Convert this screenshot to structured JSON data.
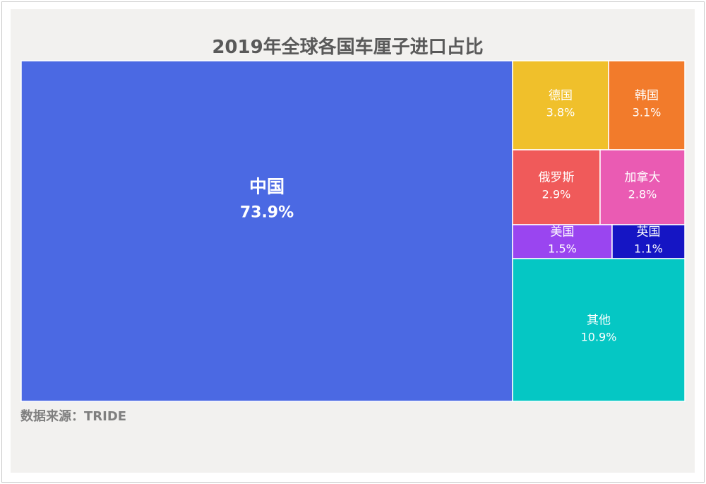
{
  "chart_data": {
    "type": "treemap",
    "title": "2019年全球各国车厘子进口占比",
    "source": "数据来源：TRIDE",
    "items": [
      {
        "name": "中国",
        "value": 73.9,
        "label": "73.9%",
        "color": "#4b69e3"
      },
      {
        "name": "德国",
        "value": 3.8,
        "label": "3.8%",
        "color": "#f0c02b"
      },
      {
        "name": "韩国",
        "value": 3.1,
        "label": "3.1%",
        "color": "#f27b2b"
      },
      {
        "name": "俄罗斯",
        "value": 2.9,
        "label": "2.9%",
        "color": "#f05a5a"
      },
      {
        "name": "加拿大",
        "value": 2.8,
        "label": "2.8%",
        "color": "#ea5bb3"
      },
      {
        "name": "美国",
        "value": 1.5,
        "label": "1.5%",
        "color": "#9a45f0"
      },
      {
        "name": "英国",
        "value": 1.1,
        "label": "1.1%",
        "color": "#1515c4"
      },
      {
        "name": "其他",
        "value": 10.9,
        "label": "10.9%",
        "color": "#05c7c4"
      }
    ]
  }
}
